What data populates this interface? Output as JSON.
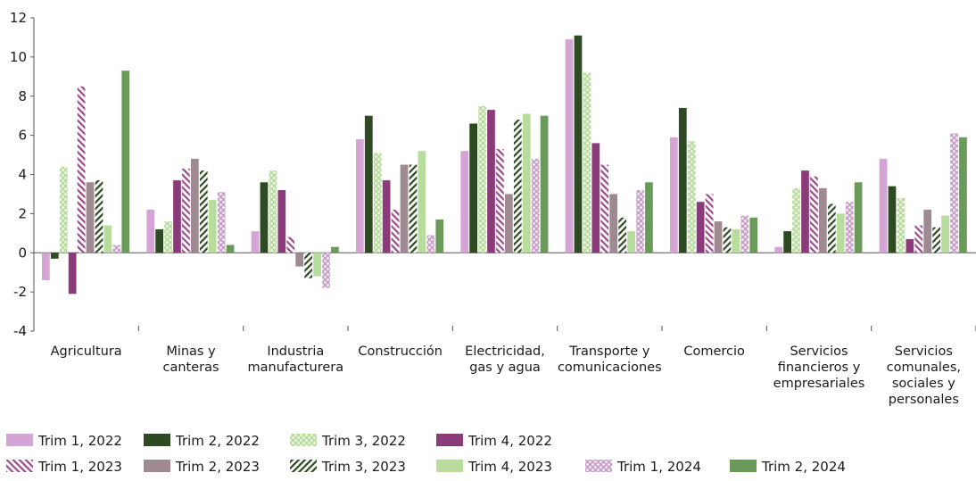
{
  "chart_data": {
    "type": "bar",
    "title": "",
    "xlabel": "",
    "ylabel": "",
    "ylim": [
      -4,
      12
    ],
    "yticks": [
      -4,
      -2,
      0,
      2,
      4,
      6,
      8,
      10,
      12
    ],
    "grid": false,
    "legend_position": "bottom",
    "categories": [
      [
        "Agricultura"
      ],
      [
        "Minas y",
        "canteras"
      ],
      [
        "Industria",
        "manufacturera"
      ],
      [
        "Construcción"
      ],
      [
        "Electricidad,",
        "gas y agua"
      ],
      [
        "Transporte y",
        "comunicaciones"
      ],
      [
        "Comercio"
      ],
      [
        "Servicios",
        "financieros y",
        "empresariales"
      ],
      [
        "Servicios",
        "comunales,",
        "sociales y",
        "personales"
      ]
    ],
    "series": [
      {
        "name": "Trim 1, 2022",
        "color": "#d4a5d4",
        "pattern": "solid",
        "values": [
          -1.4,
          2.2,
          1.1,
          5.8,
          5.2,
          10.9,
          5.9,
          0.3,
          4.8
        ]
      },
      {
        "name": "Trim 2, 2022",
        "color": "#2d4a22",
        "pattern": "solid",
        "values": [
          -0.3,
          1.2,
          3.6,
          7.0,
          6.6,
          11.1,
          7.4,
          1.1,
          3.4
        ]
      },
      {
        "name": "Trim 3, 2022",
        "color": "#b8dc9c",
        "pattern": "dots",
        "values": [
          4.4,
          1.6,
          4.2,
          5.1,
          7.5,
          9.2,
          5.7,
          3.3,
          2.8
        ]
      },
      {
        "name": "Trim 4, 2022",
        "color": "#8b3a7a",
        "pattern": "solid",
        "values": [
          -2.1,
          3.7,
          3.2,
          3.7,
          7.3,
          5.6,
          2.6,
          4.2,
          0.7
        ]
      },
      {
        "name": "Trim 1, 2023",
        "color": "#9b4a8a",
        "pattern": "diag-back",
        "values": [
          8.5,
          4.3,
          0.8,
          2.2,
          5.3,
          4.5,
          3.0,
          3.9,
          1.4
        ]
      },
      {
        "name": "Trim 2, 2023",
        "color": "#9e8a90",
        "pattern": "solid",
        "values": [
          3.6,
          4.8,
          -0.7,
          4.5,
          3.0,
          3.0,
          1.6,
          3.3,
          2.2
        ]
      },
      {
        "name": "Trim 3, 2023",
        "color": "#2d4a22",
        "pattern": "diag-fwd",
        "values": [
          3.7,
          4.2,
          -1.3,
          4.5,
          6.8,
          1.8,
          1.3,
          2.5,
          1.3
        ]
      },
      {
        "name": "Trim 4, 2023",
        "color": "#b8dc9c",
        "pattern": "solid",
        "values": [
          1.4,
          2.7,
          -1.2,
          5.2,
          7.1,
          1.1,
          1.2,
          2.0,
          1.9
        ]
      },
      {
        "name": "Trim 1, 2024",
        "color": "#c9a0c9",
        "pattern": "dots",
        "values": [
          0.4,
          3.1,
          -1.8,
          0.9,
          4.8,
          3.2,
          1.9,
          2.6,
          6.1
        ]
      },
      {
        "name": "Trim 2, 2024",
        "color": "#6a9a5a",
        "pattern": "solid",
        "values": [
          9.3,
          0.4,
          0.3,
          1.7,
          7.0,
          3.6,
          1.8,
          3.6,
          5.9
        ]
      }
    ]
  }
}
